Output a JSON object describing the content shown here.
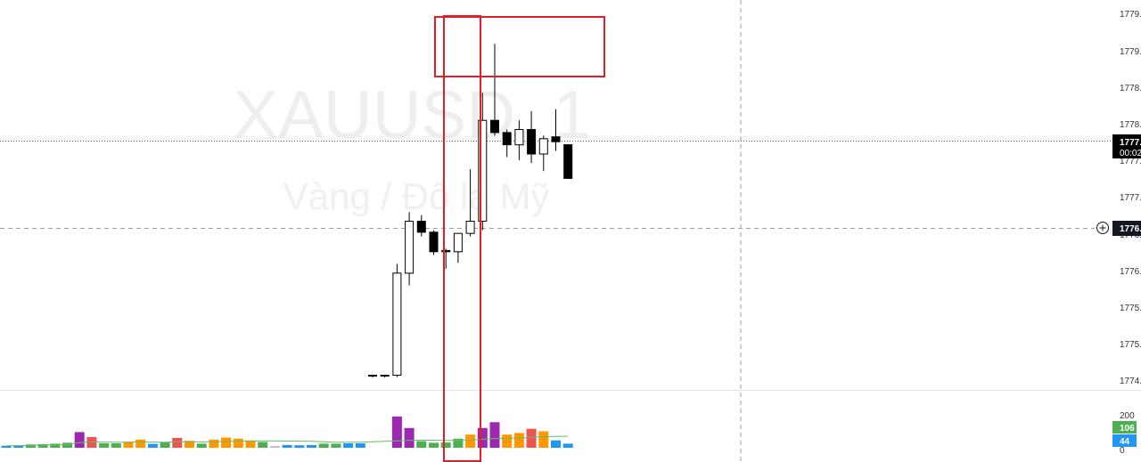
{
  "watermark": {
    "symbol": "XAUUSD, 1",
    "description": "Vàng / Đô la Mỹ"
  },
  "colors": {
    "up_body": "#ffffff",
    "down_body": "#000000",
    "highlight_body": "#f5a623",
    "annotation": "#e31e24",
    "volume_purple": "#9c27b0",
    "volume_red": "#ef5350",
    "volume_green": "#4caf50",
    "volume_orange": "#ff9800",
    "volume_blue": "#2196f3",
    "volume_gray": "#bdbdbd",
    "volume_ma": "#66bb6a",
    "badge_green": "#4caf50",
    "badge_blue": "#2196f3"
  },
  "price_axis": {
    "tick_labels": [
      "1779.",
      "1779.",
      "1778.",
      "1778.",
      "1777.",
      "1777.",
      "1776.",
      "1776.",
      "1775.",
      "1775.",
      "1774."
    ],
    "last_price_label": "1777.",
    "countdown_label": "00:02",
    "crosshair_label": "1776.",
    "crosshair_icon": "plus-circle-icon"
  },
  "volume_axis": {
    "tick_labels": [
      "200",
      "0"
    ],
    "volume_badge": "106",
    "ma_badge": "44"
  },
  "chart_data": {
    "type": "candlestick",
    "title": "XAUUSD, 1",
    "subtitle": "Vàng / Đô la Mỹ",
    "price_range": [
      1774.0,
      1780.0
    ],
    "volume_range": [
      0,
      200
    ],
    "candles": [
      {
        "o": 1774.08,
        "h": 1774.08,
        "l": 1774.04,
        "c": 1774.08,
        "v": 0
      },
      {
        "o": 1774.08,
        "h": 1774.08,
        "l": 1774.04,
        "c": 1774.08,
        "v": 0
      },
      {
        "o": 1774.08,
        "h": 1775.9,
        "l": 1774.05,
        "c": 1775.75,
        "v": 190,
        "color": "purple"
      },
      {
        "o": 1775.75,
        "h": 1776.75,
        "l": 1775.55,
        "c": 1776.6,
        "v": 120,
        "color": "purple"
      },
      {
        "o": 1776.6,
        "h": 1776.7,
        "l": 1776.35,
        "c": 1776.42,
        "v": 40,
        "color": "green"
      },
      {
        "o": 1776.42,
        "h": 1776.45,
        "l": 1776.05,
        "c": 1776.1,
        "v": 30,
        "color": "green"
      },
      {
        "o": 1776.12,
        "h": 1776.15,
        "l": 1775.82,
        "c": 1776.1,
        "v": 32,
        "color": "green"
      },
      {
        "o": 1776.1,
        "h": 1776.4,
        "l": 1775.92,
        "c": 1776.4,
        "v": 55,
        "color": "green"
      },
      {
        "o": 1776.4,
        "h": 1777.45,
        "l": 1776.35,
        "c": 1776.6,
        "v": 80,
        "color": "orange"
      },
      {
        "o": 1776.6,
        "h": 1778.7,
        "l": 1776.45,
        "c": 1778.25,
        "v": 120,
        "color": "purple"
      },
      {
        "o": 1778.25,
        "h": 1779.5,
        "l": 1778.0,
        "c": 1778.05,
        "v": 155,
        "color": "purple"
      },
      {
        "o": 1778.05,
        "h": 1778.1,
        "l": 1777.65,
        "c": 1777.85,
        "v": 80,
        "color": "orange"
      },
      {
        "o": 1777.85,
        "h": 1778.25,
        "l": 1777.6,
        "c": 1778.1,
        "v": 90,
        "color": "orange"
      },
      {
        "o": 1778.1,
        "h": 1778.4,
        "l": 1777.55,
        "c": 1777.7,
        "v": 115,
        "color": "red"
      },
      {
        "o": 1777.7,
        "h": 1778.0,
        "l": 1777.42,
        "c": 1777.95,
        "v": 100,
        "color": "orange"
      },
      {
        "o": 1777.98,
        "h": 1778.43,
        "l": 1777.75,
        "c": 1777.9,
        "v": 45,
        "color": "blue"
      },
      {
        "o": 1777.85,
        "h": 1777.85,
        "l": 1777.3,
        "c": 1777.3,
        "v": 25,
        "color": "blue"
      }
    ],
    "early_volume": [
      {
        "v": 12,
        "color": "blue"
      },
      {
        "v": 14,
        "color": "blue"
      },
      {
        "v": 20,
        "color": "green"
      },
      {
        "v": 22,
        "color": "green"
      },
      {
        "v": 25,
        "color": "green"
      },
      {
        "v": 30,
        "color": "green"
      },
      {
        "v": 95,
        "color": "purple"
      },
      {
        "v": 65,
        "color": "red"
      },
      {
        "v": 27,
        "color": "green"
      },
      {
        "v": 27,
        "color": "green"
      },
      {
        "v": 37,
        "color": "orange"
      },
      {
        "v": 50,
        "color": "orange"
      },
      {
        "v": 24,
        "color": "blue"
      },
      {
        "v": 32,
        "color": "green"
      },
      {
        "v": 60,
        "color": "red"
      },
      {
        "v": 42,
        "color": "orange"
      },
      {
        "v": 25,
        "color": "green"
      },
      {
        "v": 50,
        "color": "orange"
      },
      {
        "v": 62,
        "color": "orange"
      },
      {
        "v": 55,
        "color": "orange"
      },
      {
        "v": 45,
        "color": "orange"
      },
      {
        "v": 35,
        "color": "green"
      },
      {
        "v": 10,
        "color": "gray"
      },
      {
        "v": 17,
        "color": "blue"
      },
      {
        "v": 15,
        "color": "blue"
      },
      {
        "v": 17,
        "color": "blue"
      },
      {
        "v": 25,
        "color": "green"
      },
      {
        "v": 25,
        "color": "green"
      },
      {
        "v": 27,
        "color": "blue"
      },
      {
        "v": 27,
        "color": "blue"
      }
    ]
  }
}
